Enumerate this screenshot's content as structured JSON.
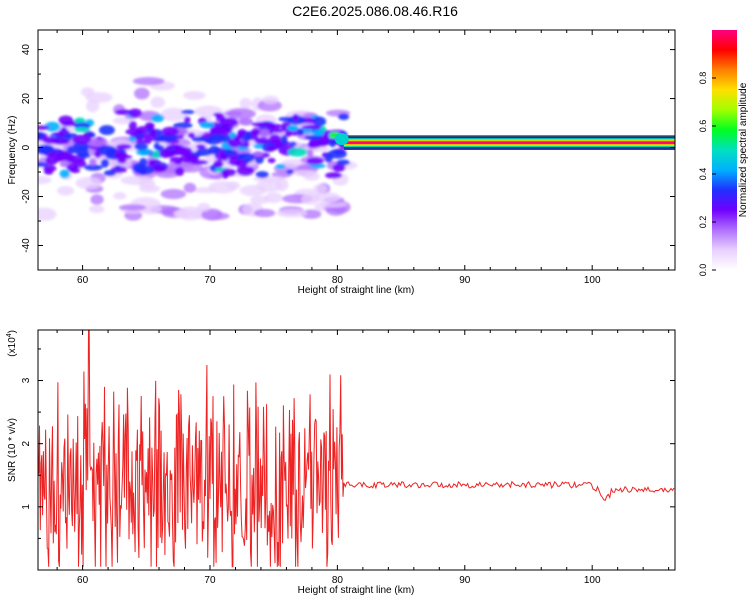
{
  "title": "C2E6.2025.086.08.46.R16",
  "chart_data": [
    {
      "type": "heatmap",
      "name": "spectrogram",
      "xlabel": "Height of straight line (km)",
      "ylabel": "Frequency (Hz)",
      "xlim": [
        56.5,
        106.5
      ],
      "ylim": [
        -50,
        48
      ],
      "xticks": [
        60,
        70,
        80,
        90,
        100
      ],
      "yticks": [
        -40,
        -20,
        0,
        20,
        40
      ],
      "colorbar": {
        "label": "Normalized spectral amplitude",
        "range": [
          0,
          1
        ],
        "ticks": [
          0.0,
          0.2,
          0.4,
          0.6,
          0.8
        ],
        "colors": [
          "#ffffff",
          "#e8d0ff",
          "#b070ff",
          "#7000ff",
          "#2030ff",
          "#00b0ff",
          "#00e0c0",
          "#00ff20",
          "#a0ff00",
          "#ffe000",
          "#ff8000",
          "#ff0000",
          "#ff0080"
        ]
      },
      "noisy_region_x": [
        56.5,
        80.5
      ],
      "noisy_region_y": [
        -26,
        30
      ],
      "steady_band": {
        "x": [
          80.5,
          106.5
        ],
        "center_hz": 2,
        "halfwidth_hz": 3
      }
    },
    {
      "type": "line",
      "name": "snr",
      "xlabel": "Height of straight line (km)",
      "ylabel": "SNR (10 * v/v)",
      "multiplier": "(x10",
      "multiplier_exp": "4",
      "multiplier_close": ")",
      "xlim": [
        56.5,
        106.5
      ],
      "ylim": [
        0,
        3.8
      ],
      "xticks": [
        60,
        70,
        80,
        90,
        100
      ],
      "yticks": [
        1,
        2,
        3
      ],
      "color": "#ee2222",
      "noisy_region": {
        "x": [
          56.5,
          80.5
        ],
        "base": 1.3,
        "spread": 1.25,
        "peak": 3.8
      },
      "steady_region": {
        "x": [
          80.5,
          106.5
        ],
        "level": 1.35,
        "jitter": 0.05,
        "dip_x": 101,
        "dip_level": 1.1,
        "tail_level": 1.27
      }
    }
  ]
}
